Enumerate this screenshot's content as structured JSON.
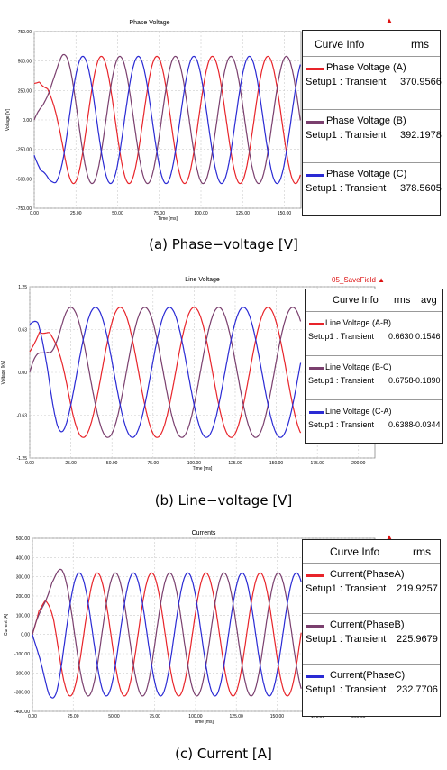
{
  "colors": {
    "red": "#e8242a",
    "purple": "#7a3f6e",
    "blue": "#2a2ad4"
  },
  "panels": [
    {
      "key": "phase",
      "caption": "(a) Phase−voltage [V]",
      "table_headers": [
        "Curve Info",
        "rms"
      ],
      "rows": [
        {
          "name": "Phase Voltage (A)",
          "setup": "Setup1 : Transient",
          "rms": "370.9566"
        },
        {
          "name": "Phase Voltage (B)",
          "setup": "Setup1 : Transient",
          "rms": "392.1978"
        },
        {
          "name": "Phase Voltage (C)",
          "setup": "Setup1 : Transient",
          "rms": "378.5605"
        }
      ],
      "marker_label": "▲"
    },
    {
      "key": "line",
      "caption": "(b) Line−voltage [V]",
      "table_headers": [
        "Curve Info",
        "rms",
        "avg"
      ],
      "rows": [
        {
          "name": "Line Voltage (A-B)",
          "setup": "Setup1 : Transient",
          "rms": "0.6630",
          "avg": "0.1546"
        },
        {
          "name": "Line Voltage (B-C)",
          "setup": "Setup1 : Transient",
          "rms": "0.6758",
          "avg": "-0.1890"
        },
        {
          "name": "Line Voltage (C-A)",
          "setup": "Setup1 : Transient",
          "rms": "0.6388",
          "avg": "-0.0344"
        }
      ],
      "marker_label": "05_SaveField ▲"
    },
    {
      "key": "current",
      "caption": "(c) Current [A]",
      "table_headers": [
        "Curve Info",
        "rms"
      ],
      "rows": [
        {
          "name": "Current(PhaseA)",
          "setup": "Setup1 : Transient",
          "rms": "219.9257"
        },
        {
          "name": "Current(PhaseB)",
          "setup": "Setup1 : Transient",
          "rms": "225.9679"
        },
        {
          "name": "Current(PhaseC)",
          "setup": "Setup1 : Transient",
          "rms": "232.7706"
        }
      ],
      "marker_label": "▲"
    }
  ],
  "chart_data": [
    {
      "type": "line",
      "title": "Phase Voltage",
      "xlabel": "Time [ms]",
      "ylabel": "Voltage [V]",
      "xlim": [
        0,
        160
      ],
      "ylim": [
        -750,
        750
      ],
      "xticks": [
        "0.00",
        "25.00",
        "50.00",
        "75.00",
        "100.00",
        "125.00",
        "150.00"
      ],
      "yticks": [
        "750.00",
        "500.00",
        "250.00",
        "0.00",
        "-250.00",
        "-500.00",
        "-750.00"
      ],
      "series": [
        {
          "name": "Phase Voltage (A)",
          "color": "red",
          "period_ms": 33.3,
          "amp": 540,
          "phase_deg": 15,
          "startup": [
            [
              0,
              310
            ],
            [
              3,
              320
            ],
            [
              8,
              180
            ],
            [
              14,
              -200
            ],
            [
              20,
              -480
            ],
            [
              25,
              -560
            ]
          ]
        },
        {
          "name": "Phase Voltage (B)",
          "color": "purple",
          "period_ms": 33.3,
          "amp": 540,
          "phase_deg": 255,
          "startup": [
            [
              0,
              0
            ],
            [
              5,
              180
            ],
            [
              11,
              450
            ],
            [
              17,
              610
            ],
            [
              21,
              590
            ],
            [
              26,
              420
            ]
          ]
        },
        {
          "name": "Phase Voltage (C)",
          "color": "blue",
          "period_ms": 33.3,
          "amp": 540,
          "phase_deg": 135,
          "startup": [
            [
              0,
              -300
            ],
            [
              4,
              -470
            ],
            [
              9,
              -550
            ],
            [
              13,
              -520
            ],
            [
              18,
              -300
            ],
            [
              23,
              50
            ]
          ]
        }
      ]
    },
    {
      "type": "line",
      "title": "Line Voltage",
      "xlabel": "Time [ms]",
      "ylabel": "Voltage [kV]",
      "xlim": [
        0,
        210
      ],
      "ylim": [
        -1.25,
        1.25
      ],
      "xticks": [
        "0.00",
        "25.00",
        "50.00",
        "75.00",
        "100.00",
        "125.00",
        "150.00",
        "175.00",
        "200.00"
      ],
      "yticks": [
        "1.25",
        "0.63",
        "0.00",
        "-0.63",
        "-1.25"
      ],
      "series": [
        {
          "name": "Line Voltage (A-B)",
          "color": "red",
          "period_ms": 45,
          "amp": 0.95,
          "phase_deg": 10,
          "end": 165,
          "startup": [
            [
              0,
              0.3
            ],
            [
              6,
              0.55
            ],
            [
              12,
              0.25
            ],
            [
              18,
              -0.5
            ],
            [
              24,
              -0.95
            ]
          ]
        },
        {
          "name": "Line Voltage (B-C)",
          "color": "purple",
          "period_ms": 45,
          "amp": 0.95,
          "phase_deg": 250,
          "end": 165,
          "startup": [
            [
              0,
              0.0
            ],
            [
              5,
              0.45
            ],
            [
              11,
              0.95
            ],
            [
              16,
              1.05
            ],
            [
              22,
              0.7
            ]
          ]
        },
        {
          "name": "Line Voltage (C-A)",
          "color": "blue",
          "period_ms": 45,
          "amp": 0.95,
          "phase_deg": 130,
          "end": 165,
          "startup": [
            [
              0,
              0.7
            ],
            [
              5,
              0.8
            ],
            [
              11,
              0.55
            ],
            [
              17,
              0.0
            ],
            [
              23,
              -0.4
            ]
          ]
        }
      ]
    },
    {
      "type": "line",
      "title": "Currents",
      "xlabel": "Time [ms]",
      "ylabel": "Current [A]",
      "xlim": [
        0,
        210
      ],
      "ylim": [
        -400,
        500
      ],
      "xticks": [
        "0.00",
        "25.00",
        "50.00",
        "75.00",
        "100.00",
        "125.00",
        "150.00",
        "175.00",
        "200.00"
      ],
      "yticks": [
        "500.00",
        "400.00",
        "300.00",
        "200.00",
        "100.00",
        "0.00",
        "-100.00",
        "-200.00",
        "-300.00",
        "-400.00"
      ],
      "series": [
        {
          "name": "Current(PhaseA)",
          "color": "red",
          "period_ms": 33.3,
          "amp": 320,
          "phase_deg": 20,
          "end": 165,
          "startup": [
            [
              0,
              0
            ],
            [
              4,
              110
            ],
            [
              8,
              135
            ],
            [
              13,
              40
            ],
            [
              19,
              -250
            ],
            [
              25,
              -360
            ]
          ]
        },
        {
          "name": "Current(PhaseB)",
          "color": "purple",
          "period_ms": 33.3,
          "amp": 320,
          "phase_deg": 260,
          "end": 165,
          "startup": [
            [
              0,
              0
            ],
            [
              6,
              200
            ],
            [
              12,
              380
            ],
            [
              18,
              425
            ],
            [
              24,
              320
            ]
          ]
        },
        {
          "name": "Current(PhaseC)",
          "color": "blue",
          "period_ms": 33.3,
          "amp": 320,
          "phase_deg": 140,
          "end": 165,
          "startup": [
            [
              0,
              0
            ],
            [
              5,
              -150
            ],
            [
              10,
              -320
            ],
            [
              15,
              -380
            ],
            [
              21,
              -250
            ]
          ]
        }
      ]
    }
  ]
}
